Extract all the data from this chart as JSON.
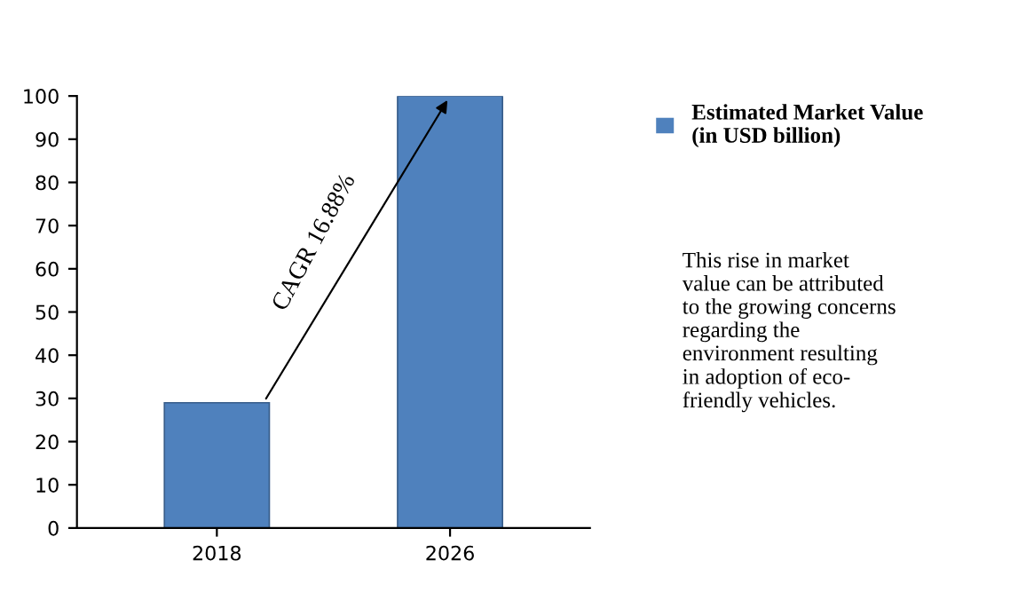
{
  "chart_data": {
    "type": "bar",
    "categories": [
      "2018",
      "2026"
    ],
    "series": [
      {
        "name": "Estimated Market Value\n(in USD billion)",
        "color": "#4f81bd",
        "values": [
          29,
          100
        ]
      }
    ],
    "ylim": [
      0,
      100
    ],
    "yticks": [
      0,
      10,
      20,
      30,
      40,
      50,
      60,
      70,
      80,
      90,
      100
    ],
    "grid": false,
    "legend": "right",
    "annotations": [
      "CAGR 16.88%",
      "This rise in market\nvalue can be attributed\nto the growing concerns\nregarding the\nenvironment resulting\nin adoption of eco-\nfriendly vehicles."
    ]
  }
}
